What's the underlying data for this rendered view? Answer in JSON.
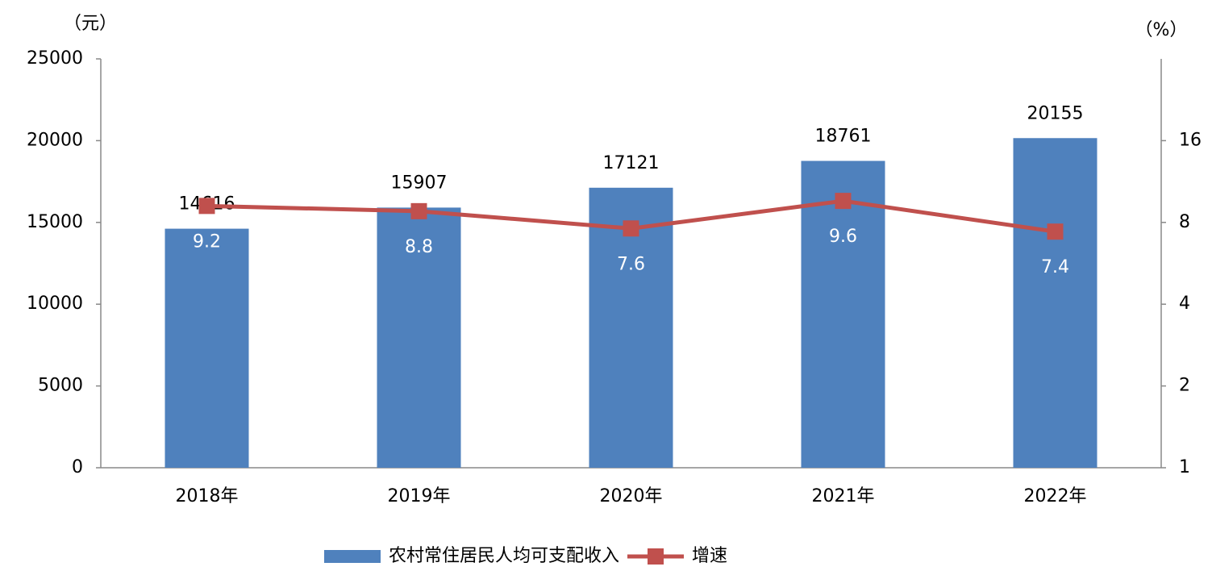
{
  "chart_data": {
    "type": "bar",
    "y_unit": "（元）",
    "y2_unit": "（%）",
    "categories": [
      "2018年",
      "2019年",
      "2020年",
      "2021年",
      "2022年"
    ],
    "series": [
      {
        "name": "农村常住居民人均可支配收入",
        "type": "bar",
        "color": "#4f81bd",
        "values": [
          14616,
          15907,
          17121,
          18761,
          20155
        ]
      },
      {
        "name": "增速",
        "type": "line",
        "axis": "y2",
        "color": "#c0504d",
        "values": [
          9.2,
          8.8,
          7.6,
          9.6,
          7.4
        ]
      }
    ],
    "ylim": [
      0,
      25000
    ],
    "yticks": [
      0,
      5000,
      10000,
      15000,
      20000,
      25000
    ],
    "y2lim": [
      1,
      32
    ],
    "y2ticks": [
      1,
      2,
      4,
      8,
      16
    ],
    "y2log": true,
    "legend": "bottom"
  }
}
